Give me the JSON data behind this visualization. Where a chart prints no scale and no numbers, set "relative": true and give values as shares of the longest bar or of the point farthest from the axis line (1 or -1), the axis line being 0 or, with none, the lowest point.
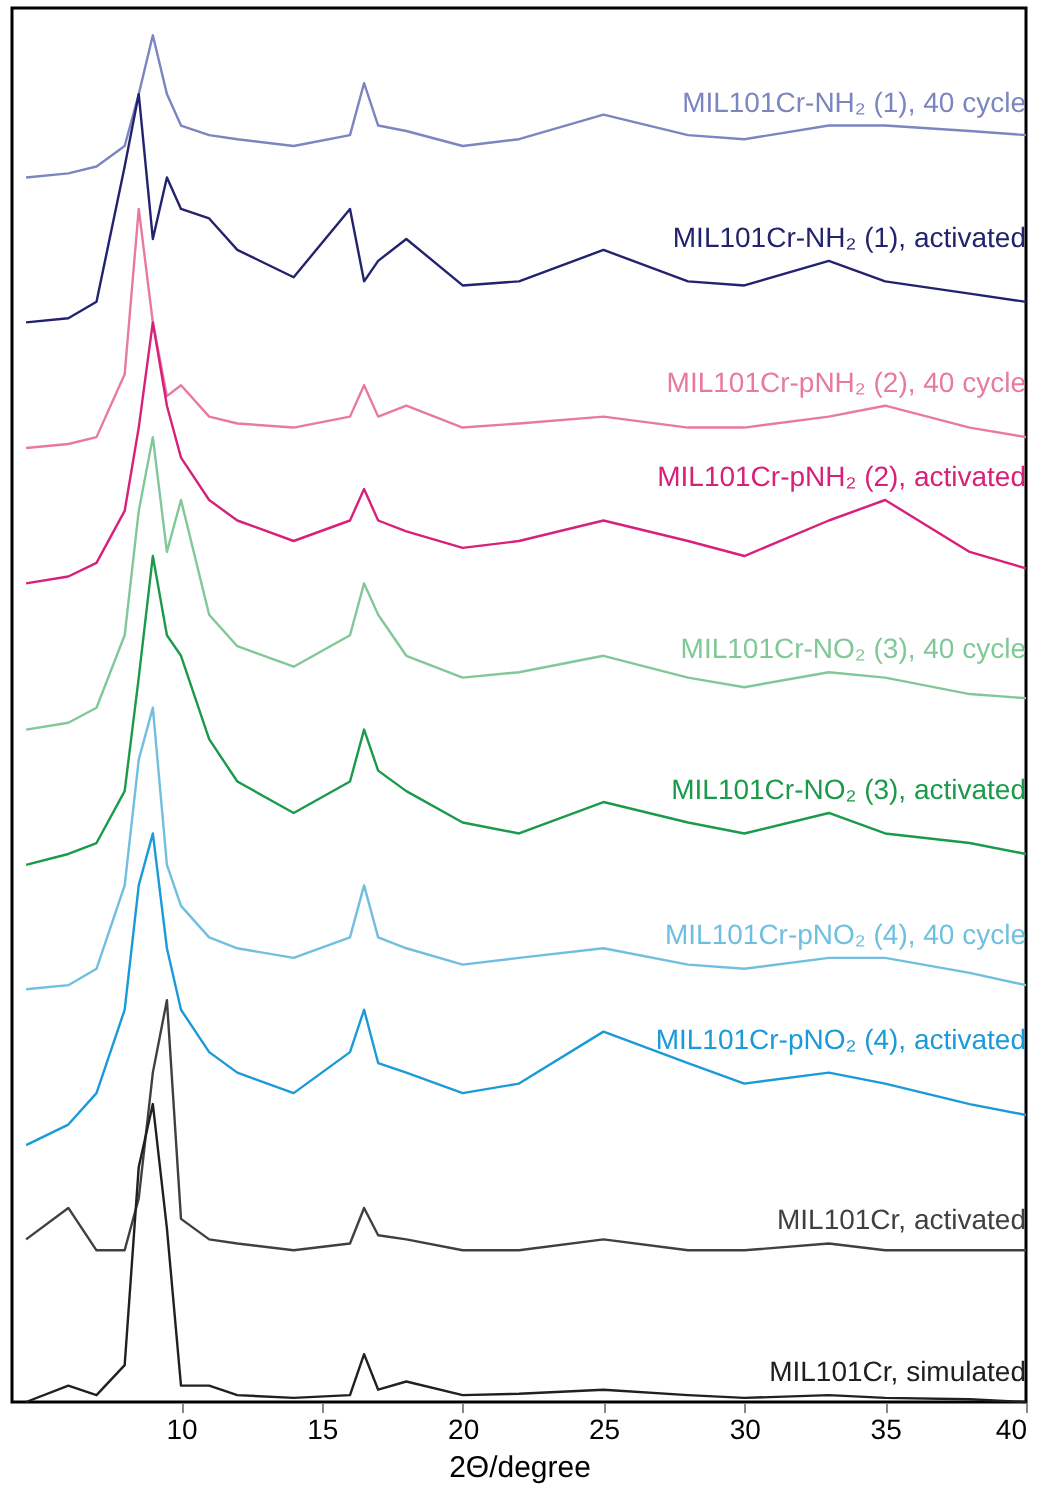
{
  "chart_data": {
    "type": "line",
    "relative": true,
    "xlabel": "2Θ/degree",
    "xlim": [
      4,
      40
    ],
    "xticks": [
      10,
      15,
      20,
      25,
      30,
      35,
      40
    ],
    "grid": false,
    "tick_labels": "x",
    "line_style": "solid",
    "x": [
      4.5,
      6,
      7,
      8,
      8.5,
      9,
      9.5,
      10,
      11,
      12,
      14,
      16,
      16.5,
      17,
      18,
      20,
      22,
      25,
      28,
      30,
      33,
      35,
      38,
      40
    ],
    "series": [
      {
        "name": "MIL101Cr-NH₂ (1), 40 cycle",
        "color": "#7b86c0",
        "values": [
          0.896,
          0.899,
          0.904,
          0.919,
          0.957,
          1.0,
          0.957,
          0.934,
          0.927,
          0.924,
          0.919,
          0.927,
          0.965,
          0.934,
          0.93,
          0.919,
          0.924,
          0.942,
          0.927,
          0.924,
          0.934,
          0.934,
          0.93,
          0.927
        ]
      },
      {
        "name": "MIL101Cr-NH₂ (1), activated",
        "color": "#22226e",
        "values": [
          0.79,
          0.793,
          0.805,
          0.904,
          0.957,
          0.851,
          0.896,
          0.873,
          0.866,
          0.843,
          0.823,
          0.873,
          0.82,
          0.835,
          0.851,
          0.817,
          0.82,
          0.843,
          0.82,
          0.817,
          0.835,
          0.82,
          0.811,
          0.805
        ]
      },
      {
        "name": "MIL101Cr-pNH₂ (2), 40 cycle",
        "color": "#e87aa0",
        "values": [
          0.698,
          0.701,
          0.706,
          0.752,
          0.873,
          0.79,
          0.736,
          0.744,
          0.721,
          0.716,
          0.713,
          0.721,
          0.744,
          0.721,
          0.729,
          0.713,
          0.716,
          0.721,
          0.713,
          0.713,
          0.721,
          0.729,
          0.713,
          0.706
        ]
      },
      {
        "name": "MIL101Cr-pNH₂ (2), activated",
        "color": "#d8207a",
        "values": [
          0.599,
          0.604,
          0.614,
          0.652,
          0.713,
          0.79,
          0.729,
          0.691,
          0.66,
          0.645,
          0.63,
          0.645,
          0.668,
          0.645,
          0.637,
          0.625,
          0.63,
          0.645,
          0.63,
          0.619,
          0.645,
          0.66,
          0.622,
          0.61
        ]
      },
      {
        "name": "MIL101Cr-NO₂ (3), 40 cycle",
        "color": "#80c898",
        "values": [
          0.492,
          0.497,
          0.508,
          0.561,
          0.652,
          0.706,
          0.622,
          0.66,
          0.576,
          0.553,
          0.538,
          0.561,
          0.599,
          0.576,
          0.546,
          0.53,
          0.534,
          0.546,
          0.53,
          0.523,
          0.534,
          0.53,
          0.518,
          0.515
        ]
      },
      {
        "name": "MIL101Cr-NO₂ (3), activated",
        "color": "#1a9a4a",
        "values": [
          0.393,
          0.401,
          0.409,
          0.447,
          0.53,
          0.619,
          0.561,
          0.546,
          0.485,
          0.454,
          0.431,
          0.454,
          0.492,
          0.462,
          0.447,
          0.424,
          0.416,
          0.439,
          0.424,
          0.416,
          0.431,
          0.416,
          0.409,
          0.401
        ]
      },
      {
        "name": "MIL101Cr-pNO₂ (4), 40 cycle",
        "color": "#70bfe0",
        "values": [
          0.302,
          0.305,
          0.317,
          0.378,
          0.47,
          0.508,
          0.393,
          0.363,
          0.34,
          0.332,
          0.325,
          0.34,
          0.378,
          0.34,
          0.332,
          0.32,
          0.325,
          0.332,
          0.32,
          0.317,
          0.325,
          0.325,
          0.314,
          0.305
        ]
      },
      {
        "name": "MIL101Cr-pNO₂ (4), activated",
        "color": "#1a9ad8",
        "values": [
          0.188,
          0.203,
          0.226,
          0.287,
          0.378,
          0.416,
          0.332,
          0.287,
          0.256,
          0.241,
          0.226,
          0.256,
          0.287,
          0.248,
          0.241,
          0.226,
          0.233,
          0.271,
          0.248,
          0.233,
          0.241,
          0.233,
          0.218,
          0.21
        ]
      },
      {
        "name": "MIL101Cr, activated",
        "color": "#404040",
        "values": [
          0.119,
          0.142,
          0.111,
          0.111,
          0.149,
          0.241,
          0.294,
          0.134,
          0.119,
          0.116,
          0.111,
          0.116,
          0.142,
          0.122,
          0.119,
          0.111,
          0.111,
          0.119,
          0.111,
          0.111,
          0.116,
          0.111,
          0.111,
          0.111
        ]
      },
      {
        "name": "MIL101Cr, simulated",
        "color": "#202020",
        "values": [
          0,
          0.012,
          0.005,
          0.027,
          0.172,
          0.218,
          0.127,
          0.012,
          0.012,
          0.005,
          0.003,
          0.005,
          0.035,
          0.009,
          0.015,
          0.005,
          0.006,
          0.009,
          0.005,
          0.003,
          0.005,
          0.003,
          0.002,
          0
        ]
      }
    ]
  }
}
